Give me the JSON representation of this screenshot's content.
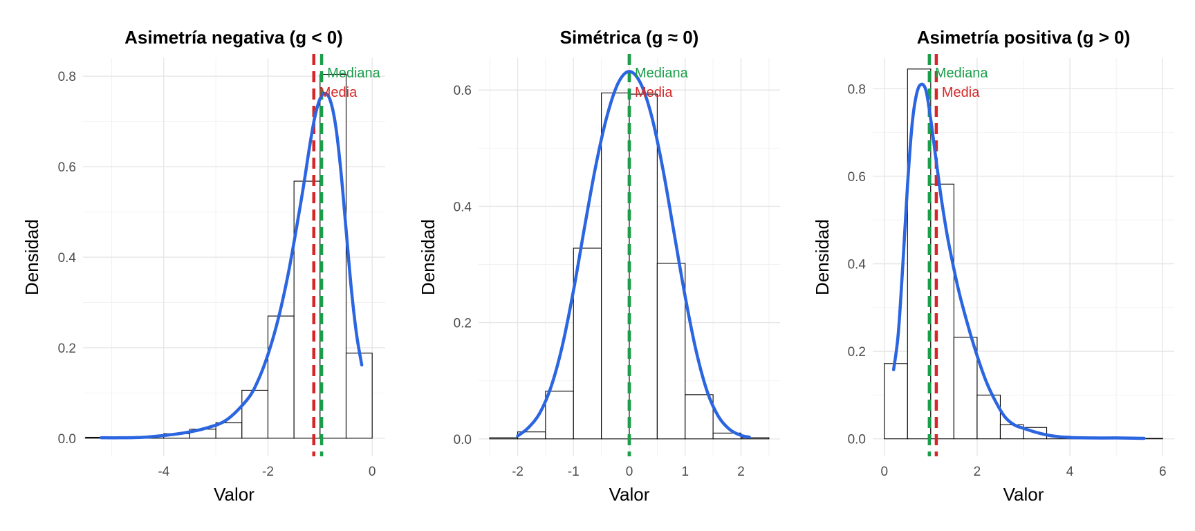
{
  "chart_data": [
    {
      "type": "histogram",
      "title": "Asimetría negativa (g < 0)",
      "xlabel": "Valor",
      "ylabel": "Densidad",
      "xlim": [
        -5.55,
        0.25
      ],
      "ylim": [
        -0.04,
        0.84
      ],
      "xticks": [
        -4,
        -2,
        0
      ],
      "xtick_labels": [
        "-4",
        "-2",
        "0"
      ],
      "yticks": [
        0.0,
        0.2,
        0.4,
        0.6,
        0.8
      ],
      "ytick_labels": [
        "0.0",
        "0.2",
        "0.4",
        "0.6",
        "0.8"
      ],
      "grid": true,
      "bins": [
        {
          "x0": -5.5,
          "x1": -5.0,
          "density": 0.002
        },
        {
          "x0": -5.0,
          "x1": -4.5,
          "density": 0.002
        },
        {
          "x0": -4.5,
          "x1": -4.0,
          "density": 0.004
        },
        {
          "x0": -4.0,
          "x1": -3.5,
          "density": 0.01
        },
        {
          "x0": -3.5,
          "x1": -3.0,
          "density": 0.02
        },
        {
          "x0": -3.0,
          "x1": -2.5,
          "density": 0.034
        },
        {
          "x0": -2.5,
          "x1": -2.0,
          "density": 0.106
        },
        {
          "x0": -2.0,
          "x1": -1.5,
          "density": 0.27
        },
        {
          "x0": -1.5,
          "x1": -1.0,
          "density": 0.568
        },
        {
          "x0": -1.0,
          "x1": -0.5,
          "density": 0.804
        },
        {
          "x0": -0.5,
          "x1": 0.0,
          "density": 0.188
        }
      ],
      "density_curve": {
        "color": "#2b65e0",
        "x": [
          -5.2,
          -4.8,
          -4.4,
          -4.0,
          -3.6,
          -3.2,
          -2.8,
          -2.4,
          -2.2,
          -2.0,
          -1.8,
          -1.6,
          -1.4,
          -1.3,
          -1.2,
          -1.1,
          -1.0,
          -0.9,
          -0.8,
          -0.7,
          -0.6,
          -0.5,
          -0.4,
          -0.3,
          -0.2
        ],
        "y": [
          0.001,
          0.001,
          0.002,
          0.006,
          0.012,
          0.022,
          0.04,
          0.085,
          0.125,
          0.185,
          0.265,
          0.37,
          0.5,
          0.57,
          0.645,
          0.71,
          0.75,
          0.762,
          0.745,
          0.69,
          0.59,
          0.46,
          0.33,
          0.23,
          0.162
        ]
      },
      "vlines": [
        {
          "label": "Media",
          "x": -1.12,
          "color": "#d62728"
        },
        {
          "label": "Mediana",
          "x": -0.97,
          "color": "#1a9e4a"
        }
      ]
    },
    {
      "type": "histogram",
      "title": "Simétrica (g ≈ 0)",
      "xlabel": "Valor",
      "ylabel": "Densidad",
      "xlim": [
        -2.7,
        2.7
      ],
      "ylim": [
        -0.03,
        0.655
      ],
      "xticks": [
        -2,
        -1,
        0,
        1,
        2
      ],
      "xtick_labels": [
        "-2",
        "-1",
        "0",
        "1",
        "2"
      ],
      "yticks": [
        0.0,
        0.2,
        0.4,
        0.6
      ],
      "ytick_labels": [
        "0.0",
        "0.2",
        "0.4",
        "0.6"
      ],
      "grid": true,
      "bins": [
        {
          "x0": -2.5,
          "x1": -2.0,
          "density": 0.002
        },
        {
          "x0": -2.0,
          "x1": -1.5,
          "density": 0.012
        },
        {
          "x0": -1.5,
          "x1": -1.0,
          "density": 0.082
        },
        {
          "x0": -1.0,
          "x1": -0.5,
          "density": 0.328
        },
        {
          "x0": -0.5,
          "x1": 0.0,
          "density": 0.595
        },
        {
          "x0": 0.0,
          "x1": 0.5,
          "density": 0.593
        },
        {
          "x0": 0.5,
          "x1": 1.0,
          "density": 0.302
        },
        {
          "x0": 1.0,
          "x1": 1.5,
          "density": 0.076
        },
        {
          "x0": 1.5,
          "x1": 2.0,
          "density": 0.01
        },
        {
          "x0": 2.0,
          "x1": 2.5,
          "density": 0.002
        }
      ],
      "density_curve": {
        "color": "#2b65e0",
        "x": [
          -2.0,
          -1.8,
          -1.6,
          -1.4,
          -1.2,
          -1.0,
          -0.8,
          -0.6,
          -0.4,
          -0.2,
          0.0,
          0.2,
          0.4,
          0.6,
          0.8,
          1.0,
          1.2,
          1.4,
          1.6,
          1.8,
          2.0,
          2.15
        ],
        "y": [
          0.005,
          0.02,
          0.045,
          0.09,
          0.16,
          0.255,
          0.365,
          0.47,
          0.555,
          0.612,
          0.632,
          0.612,
          0.555,
          0.465,
          0.355,
          0.245,
          0.15,
          0.08,
          0.038,
          0.016,
          0.006,
          0.003
        ]
      },
      "vlines": [
        {
          "label": "Media",
          "x": 0.0,
          "color": "#d62728"
        },
        {
          "label": "Mediana",
          "x": 0.0,
          "color": "#1a9e4a"
        }
      ]
    },
    {
      "type": "histogram",
      "title": "Asimetría positiva (g > 0)",
      "xlabel": "Valor",
      "ylabel": "Densidad",
      "xlim": [
        -0.25,
        6.25
      ],
      "ylim": [
        -0.04,
        0.87
      ],
      "xticks": [
        0,
        2,
        4,
        6
      ],
      "xtick_labels": [
        "0",
        "2",
        "4",
        "6"
      ],
      "yticks": [
        0.0,
        0.2,
        0.4,
        0.6,
        0.8
      ],
      "ytick_labels": [
        "0.0",
        "0.2",
        "0.4",
        "0.6",
        "0.8"
      ],
      "grid": true,
      "bins": [
        {
          "x0": 0.0,
          "x1": 0.5,
          "density": 0.172
        },
        {
          "x0": 0.5,
          "x1": 1.0,
          "density": 0.845
        },
        {
          "x0": 1.0,
          "x1": 1.5,
          "density": 0.582
        },
        {
          "x0": 1.5,
          "x1": 2.0,
          "density": 0.232
        },
        {
          "x0": 2.0,
          "x1": 2.5,
          "density": 0.1
        },
        {
          "x0": 2.5,
          "x1": 3.0,
          "density": 0.032
        },
        {
          "x0": 3.0,
          "x1": 3.5,
          "density": 0.026
        },
        {
          "x0": 3.5,
          "x1": 4.0,
          "density": 0.006
        },
        {
          "x0": 4.0,
          "x1": 4.5,
          "density": 0.002
        },
        {
          "x0": 4.5,
          "x1": 5.0,
          "density": 0.002
        },
        {
          "x0": 5.0,
          "x1": 5.5,
          "density": 0.001
        },
        {
          "x0": 5.5,
          "x1": 6.0,
          "density": 0.001
        }
      ],
      "density_curve": {
        "color": "#2b65e0",
        "x": [
          0.2,
          0.3,
          0.4,
          0.5,
          0.6,
          0.7,
          0.8,
          0.9,
          1.0,
          1.1,
          1.2,
          1.3,
          1.4,
          1.6,
          1.8,
          2.0,
          2.2,
          2.4,
          2.6,
          2.8,
          3.0,
          3.3,
          3.6,
          4.0,
          4.5,
          5.0,
          5.6
        ],
        "y": [
          0.158,
          0.24,
          0.4,
          0.58,
          0.72,
          0.79,
          0.81,
          0.795,
          0.73,
          0.65,
          0.57,
          0.5,
          0.44,
          0.34,
          0.26,
          0.19,
          0.13,
          0.085,
          0.05,
          0.032,
          0.024,
          0.014,
          0.007,
          0.003,
          0.002,
          0.002,
          0.001
        ]
      },
      "vlines": [
        {
          "label": "Media",
          "x": 1.12,
          "color": "#d62728"
        },
        {
          "label": "Mediana",
          "x": 0.97,
          "color": "#1a9e4a"
        }
      ]
    }
  ]
}
